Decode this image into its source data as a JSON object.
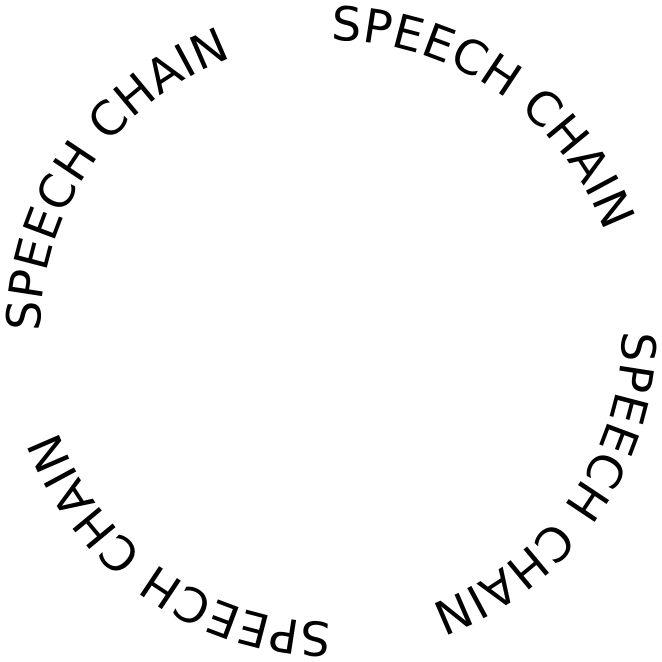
{
  "ring": {
    "segments": [
      "SPEECH CHAIN",
      "SPEECH CHAIN",
      "SPEECH CHAIN",
      "SPEECH CHAIN"
    ]
  },
  "colors": {
    "background": "#ffffff",
    "text": "#000000"
  }
}
